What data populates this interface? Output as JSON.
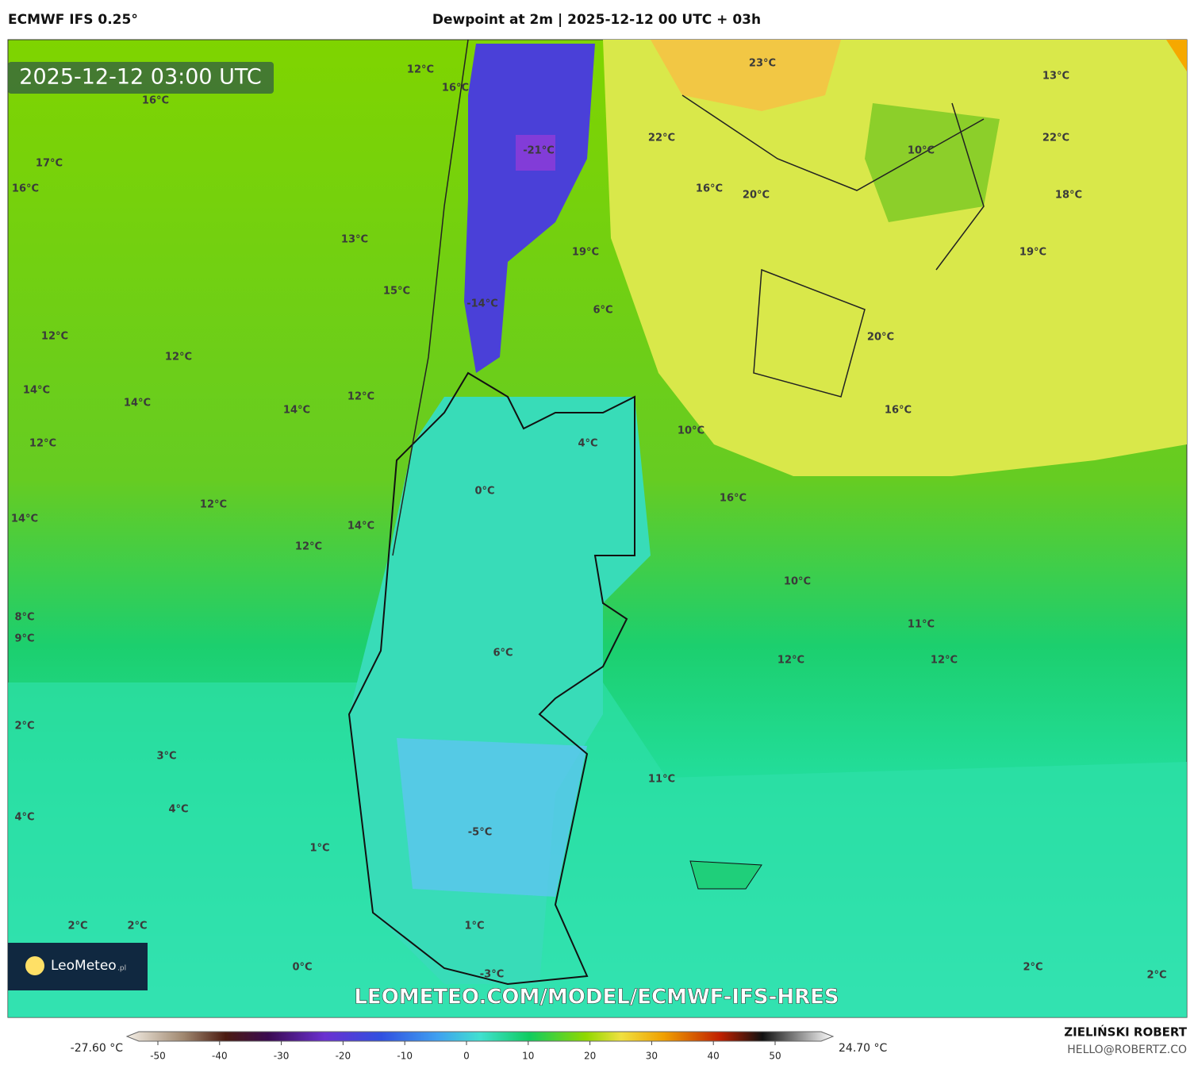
{
  "header": {
    "model": "ECMWF IFS 0.25°",
    "title": "Dewpoint at 2m | 2025-12-12 00 UTC + 03h"
  },
  "timestamp": "2025-12-12 03:00 UTC",
  "watermark": "LEOMETEO.COM/MODEL/ECMWF-IFS-HRES",
  "logo": {
    "name": "LeoMeteo",
    "suffix": ".pl"
  },
  "map_labels": [
    "12°C",
    "16°C",
    "16°C",
    "23°C",
    "13°C",
    "17°C",
    "16°C",
    "-21°C",
    "22°C",
    "10°C",
    "22°C",
    "16°C",
    "20°C",
    "18°C",
    "13°C",
    "19°C",
    "19°C",
    "15°C",
    "-14°C",
    "6°C",
    "12°C",
    "12°C",
    "20°C",
    "14°C",
    "14°C",
    "12°C",
    "14°C",
    "16°C",
    "10°C",
    "12°C",
    "4°C",
    "0°C",
    "16°C",
    "12°C",
    "14°C",
    "14°C",
    "12°C",
    "10°C",
    "8°C",
    "9°C",
    "11°C",
    "6°C",
    "12°C",
    "12°C",
    "2°C",
    "3°C",
    "11°C",
    "4°C",
    "4°C",
    "-5°C",
    "1°C",
    "2°C",
    "2°C",
    "1°C",
    "0°C",
    "2°C",
    "-3°C",
    "2°C"
  ],
  "colorbar": {
    "min_label": "-27.60 °C",
    "max_label": "24.70 °C",
    "ticks": [
      -50,
      -40,
      -30,
      -20,
      -10,
      0,
      10,
      20,
      30,
      40,
      50
    ]
  },
  "credit": {
    "author": "ZIELIŃSKI ROBERT",
    "email": "HELLO@ROBERTZ.CO"
  }
}
